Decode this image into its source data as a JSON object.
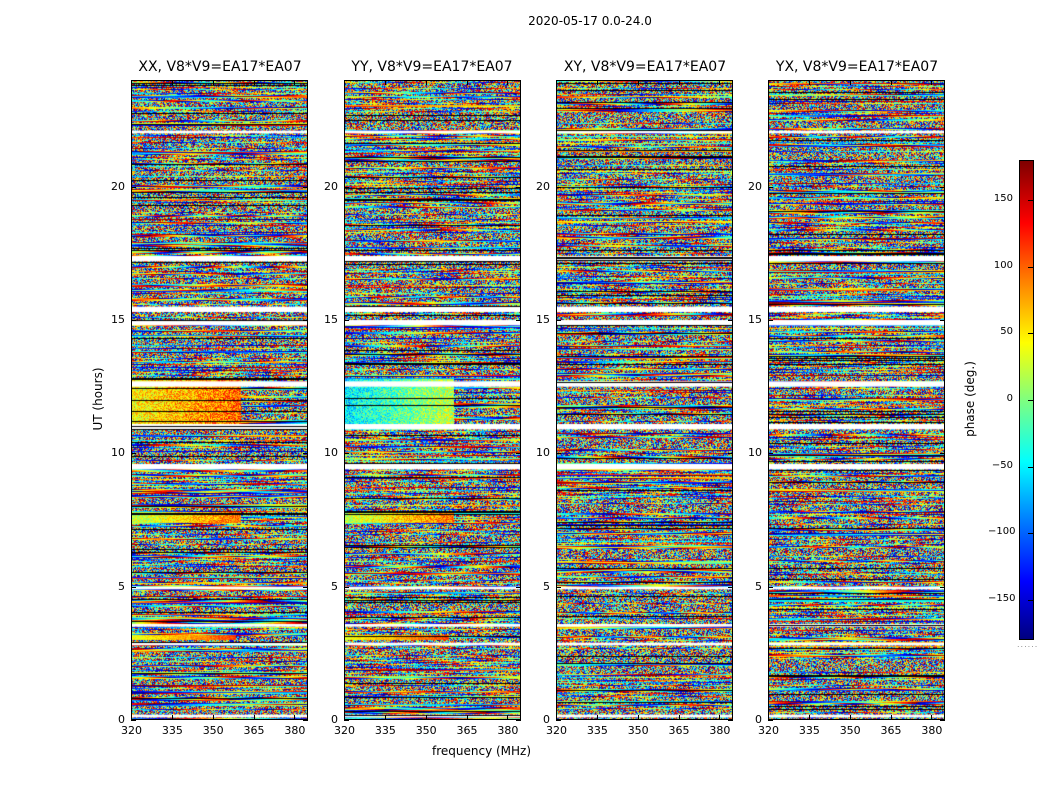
{
  "chart_data": {
    "type": "heatmap",
    "suptitle": "2020-05-17 0.0-24.0",
    "xlabel": "frequency (MHz)",
    "ylabel": "UT (hours)",
    "xlim": [
      320,
      385
    ],
    "ylim": [
      0,
      24
    ],
    "x_ticks": [
      320,
      335,
      350,
      365,
      380
    ],
    "y_ticks": [
      0,
      5,
      10,
      15,
      20
    ],
    "panels": [
      {
        "title": "XX, V8*V9=EA17*EA07",
        "pol": "XX"
      },
      {
        "title": "YY, V8*V9=EA17*EA07",
        "pol": "YY"
      },
      {
        "title": "XY, V8*V9=EA17*EA07",
        "pol": "XY"
      },
      {
        "title": "YX, V8*V9=EA17*EA07",
        "pol": "YX"
      }
    ],
    "colorbar": {
      "label": "phase (deg.)",
      "range": [
        -180,
        180
      ],
      "ticks": [
        150,
        100,
        50,
        0,
        -50,
        -100,
        -150
      ],
      "tick_labels": [
        "150",
        "100",
        "50",
        "0",
        "−50",
        "−100",
        "−150"
      ],
      "colormap": "jet"
    },
    "flagged_bands_ut": [
      [
        0.1,
        0.2
      ],
      [
        2.8,
        2.9
      ],
      [
        3.5,
        3.6
      ],
      [
        4.9,
        5.0
      ],
      [
        9.4,
        9.6
      ],
      [
        10.9,
        11.1
      ],
      [
        12.5,
        12.7
      ],
      [
        14.8,
        15.0
      ],
      [
        15.3,
        15.5
      ],
      [
        17.2,
        17.4
      ],
      [
        22.0,
        22.1
      ]
    ]
  }
}
